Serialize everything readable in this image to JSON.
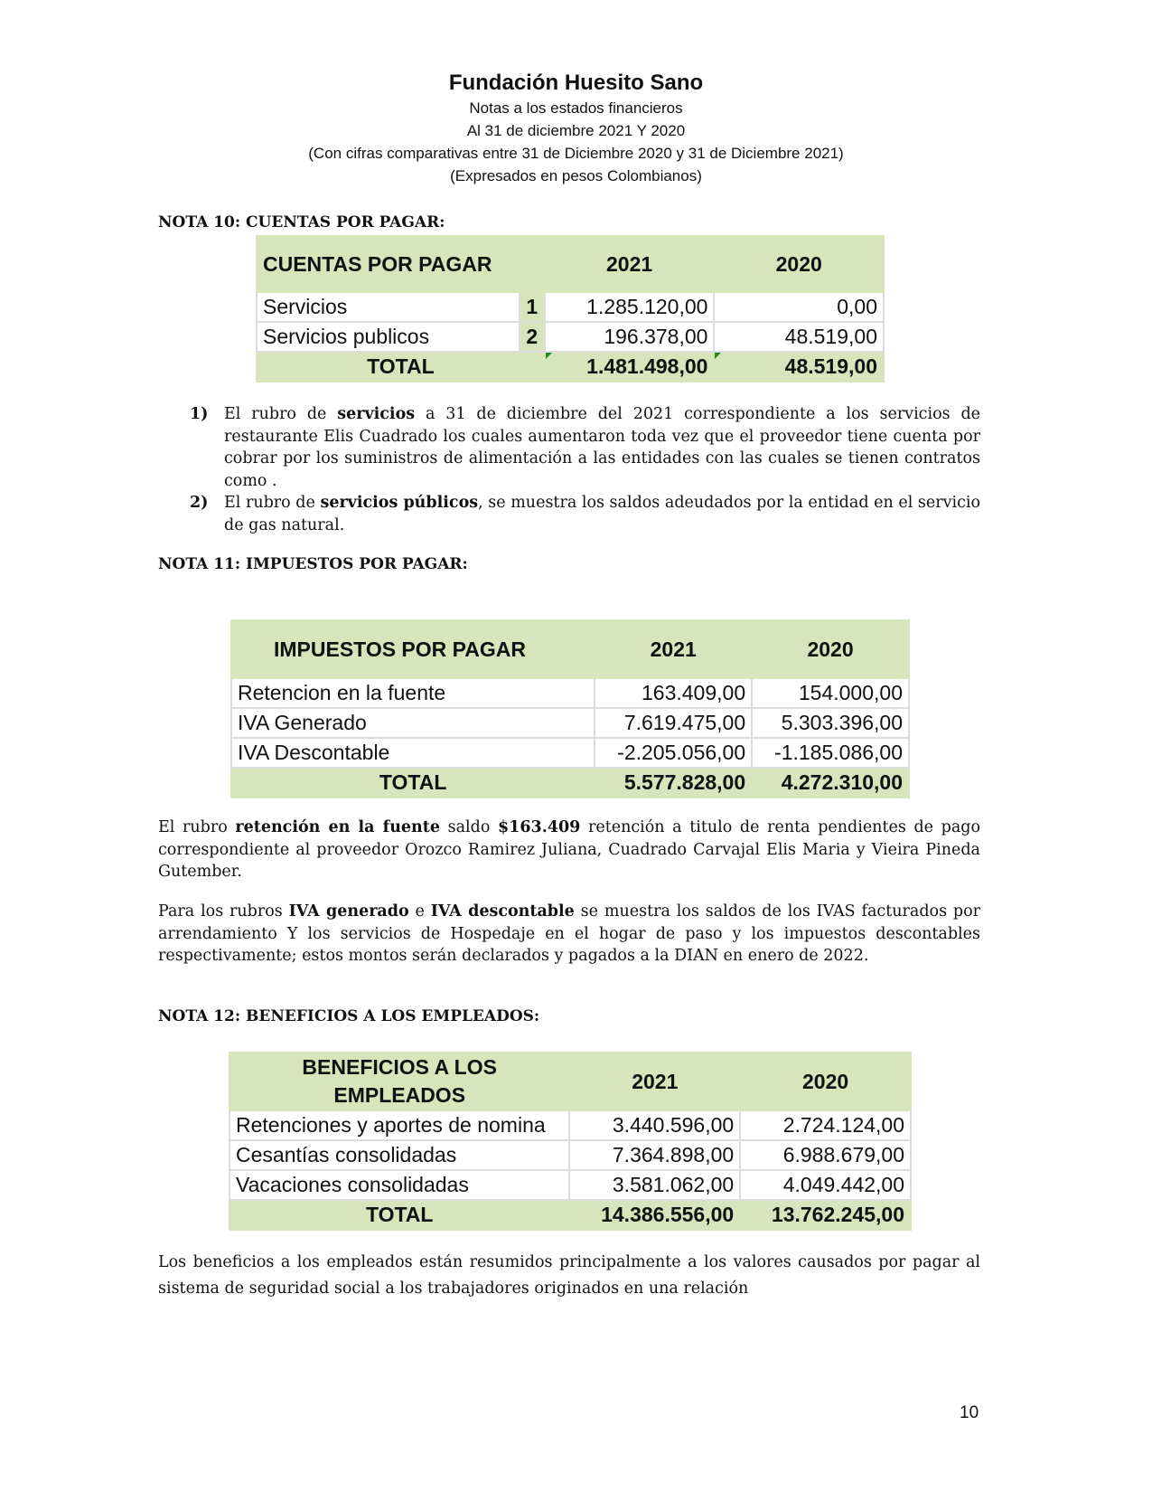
{
  "header": {
    "title": "Fundación Huesito Sano",
    "lines": [
      "Notas a los estados financieros",
      "Al 31 de diciembre 2021 Y 2020",
      "(Con cifras comparativas entre 31 de Diciembre 2020 y 31 de Diciembre 2021)",
      "(Expresados en pesos Colombianos)"
    ]
  },
  "nota10": {
    "heading": "NOTA 10: CUENTAS POR PAGAR:",
    "table": {
      "title": "CUENTAS POR PAGAR",
      "col1": "2021",
      "col2": "2020",
      "rows": [
        {
          "label": "Servicios",
          "ref": "1",
          "v2021": "1.285.120,00",
          "v2020": "0,00"
        },
        {
          "label": "Servicios publicos",
          "ref": "2",
          "v2021": "196.378,00",
          "v2020": "48.519,00"
        }
      ],
      "total_label": "TOTAL",
      "total2021": "1.481.498,00",
      "total2020": "48.519,00"
    },
    "notes": [
      {
        "n": "1)",
        "pre": "El rubro de ",
        "bold": "servicios",
        "post": " a 31 de diciembre del 2021 correspondiente a los servicios de restaurante Elis Cuadrado los cuales aumentaron toda vez que el proveedor tiene cuenta por cobrar por los suministros de alimentación a las entidades con las cuales se tienen contratos como ."
      },
      {
        "n": "2)",
        "pre": "El rubro de ",
        "bold": "servicios públicos",
        "post": ", se muestra los saldos adeudados por la entidad en el servicio de gas natural."
      }
    ]
  },
  "nota11": {
    "heading": "NOTA 11: IMPUESTOS POR PAGAR:",
    "table": {
      "title": "IMPUESTOS  POR PAGAR",
      "col1": "2021",
      "col2": "2020",
      "rows": [
        {
          "label": "Retencion en la fuente",
          "v2021": "163.409,00",
          "v2020": "154.000,00"
        },
        {
          "label": "IVA Generado",
          "v2021": "7.619.475,00",
          "v2020": "5.303.396,00"
        },
        {
          "label": "IVA Descontable",
          "v2021": "-2.205.056,00",
          "v2020": "-1.185.086,00"
        }
      ],
      "total_label": "TOTAL",
      "total2021": "5.577.828,00",
      "total2020": "4.272.310,00"
    },
    "p1": {
      "a": "El rubro ",
      "b1": "retención en la fuente",
      "c": " saldo ",
      "b2": "$163.409",
      "d": " retención a titulo de renta pendientes de pago correspondiente al proveedor Orozco Ramirez Juliana, Cuadrado Carvajal Elis Maria y Vieira Pineda Gutember."
    },
    "p2": {
      "a": "Para los rubros ",
      "b1": "IVA generado",
      "c": " e ",
      "b2": "IVA descontable",
      "d": " se muestra los saldos de los IVAS facturados por arrendamiento Y los servicios de Hospedaje en el hogar de paso y los impuestos descontables respectivamente; estos montos serán declarados y pagados a la DIAN en enero de 2022."
    }
  },
  "nota12": {
    "heading": "NOTA 12: BENEFICIOS A LOS EMPLEADOS:",
    "table": {
      "title_line1": "BENEFICIOS A LOS",
      "title_line2": "EMPLEADOS",
      "col1": "2021",
      "col2": "2020",
      "rows": [
        {
          "label": "Retenciones y aportes de nomina",
          "v2021": "3.440.596,00",
          "v2020": "2.724.124,00"
        },
        {
          "label": "Cesantías consolidadas",
          "v2021": "7.364.898,00",
          "v2020": "6.988.679,00"
        },
        {
          "label": "Vacaciones consolidadas",
          "v2021": "3.581.062,00",
          "v2020": "4.049.442,00"
        }
      ],
      "total_label": "TOTAL",
      "total2021": "14.386.556,00",
      "total2020": "13.762.245,00"
    },
    "p1": "Los beneficios a los empleados están resumidos principalmente a los valores causados por pagar al sistema de seguridad social a los trabajadores originados en una relación"
  },
  "page_number": "10",
  "colors": {
    "table_header_bg": "#d8e4bc",
    "grid": "#dcdcdc",
    "marker": "#1e8c1e"
  }
}
